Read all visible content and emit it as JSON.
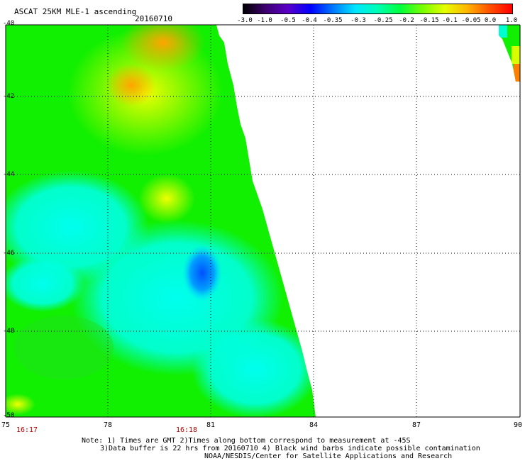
{
  "header": {
    "title": "ASCAT 25KM MLE-1 ascending",
    "date": "20160710"
  },
  "colorbar": {
    "labels": [
      "-3.0",
      "-1.0",
      "-0.5",
      "-0.4",
      "-0.35",
      "-0.3",
      "-0.25",
      "-0.2",
      "-0.15",
      "-0.1",
      "-0.05",
      "0.0",
      "1.0"
    ],
    "colors": [
      "#000000",
      "#3d0070",
      "#5a00c8",
      "#0000ff",
      "#0078ff",
      "#00e6ff",
      "#00ffb4",
      "#00ff3c",
      "#78ff00",
      "#e6ff00",
      "#ffb400",
      "#ff5000",
      "#ff0000"
    ]
  },
  "map": {
    "lon_ticks": [
      "75",
      "78",
      "81",
      "84",
      "87",
      "90"
    ],
    "lat_ticks": [
      "-40",
      "-42",
      "-44",
      "-46",
      "-48",
      "-50"
    ],
    "time_labels": [
      "16:17",
      "16:18"
    ],
    "grid": "dotted"
  },
  "notes": [
    "Note: 1) Times are GMT 2)Times along bottom correspond to measurement at -45S",
    "3)Data buffer is 22 hrs from 20160710 4) Black wind barbs indicate possible contamination",
    "NOAA/NESDIS/Center for Satellite Applications and Research"
  ]
}
